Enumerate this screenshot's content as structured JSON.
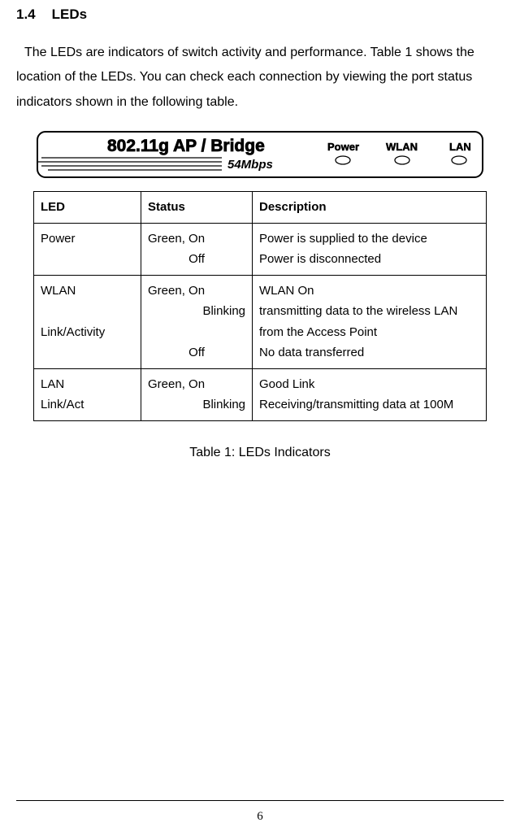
{
  "heading": {
    "number": "1.4",
    "title": "LEDs"
  },
  "intro": "The LEDs are indicators of switch activity and performance. Table 1 shows the location of the LEDs.  You can check each connection by viewing the port status indicators shown in the following table.",
  "panel": {
    "title_main": "802.11g AP / Bridge",
    "title_sub": "54Mbps",
    "led_labels": [
      "Power",
      "WLAN",
      "LAN"
    ],
    "colors": {
      "stroke": "#000000",
      "fill": "#ffffff",
      "text": "#000000"
    }
  },
  "table": {
    "headers": {
      "led": "LED",
      "status": "Status",
      "description": "Description"
    },
    "rows": [
      {
        "led": "Power",
        "status_lines": [
          "Green, On",
          "Off"
        ],
        "status_align": [
          "left",
          "center"
        ],
        "desc_lines": [
          "Power is supplied to the device",
          "Power is disconnected"
        ]
      },
      {
        "led": "WLAN\n\nLink/Activity",
        "status_lines": [
          "Green, On",
          "Blinking",
          "",
          "Off"
        ],
        "status_align": [
          "left",
          "right",
          "left",
          "center"
        ],
        "desc_lines": [
          "WLAN On",
          "transmitting data to the wireless LAN",
          "from the Access Point",
          "No data transferred"
        ]
      },
      {
        "led": "LAN\nLink/Act",
        "status_lines": [
          "Green, On",
          "Blinking"
        ],
        "status_align": [
          "left",
          "right"
        ],
        "desc_lines": [
          "Good  Link",
          "Receiving/transmitting data at 100M"
        ]
      }
    ]
  },
  "caption": "Table 1: LEDs Indicators",
  "page_number": "6"
}
